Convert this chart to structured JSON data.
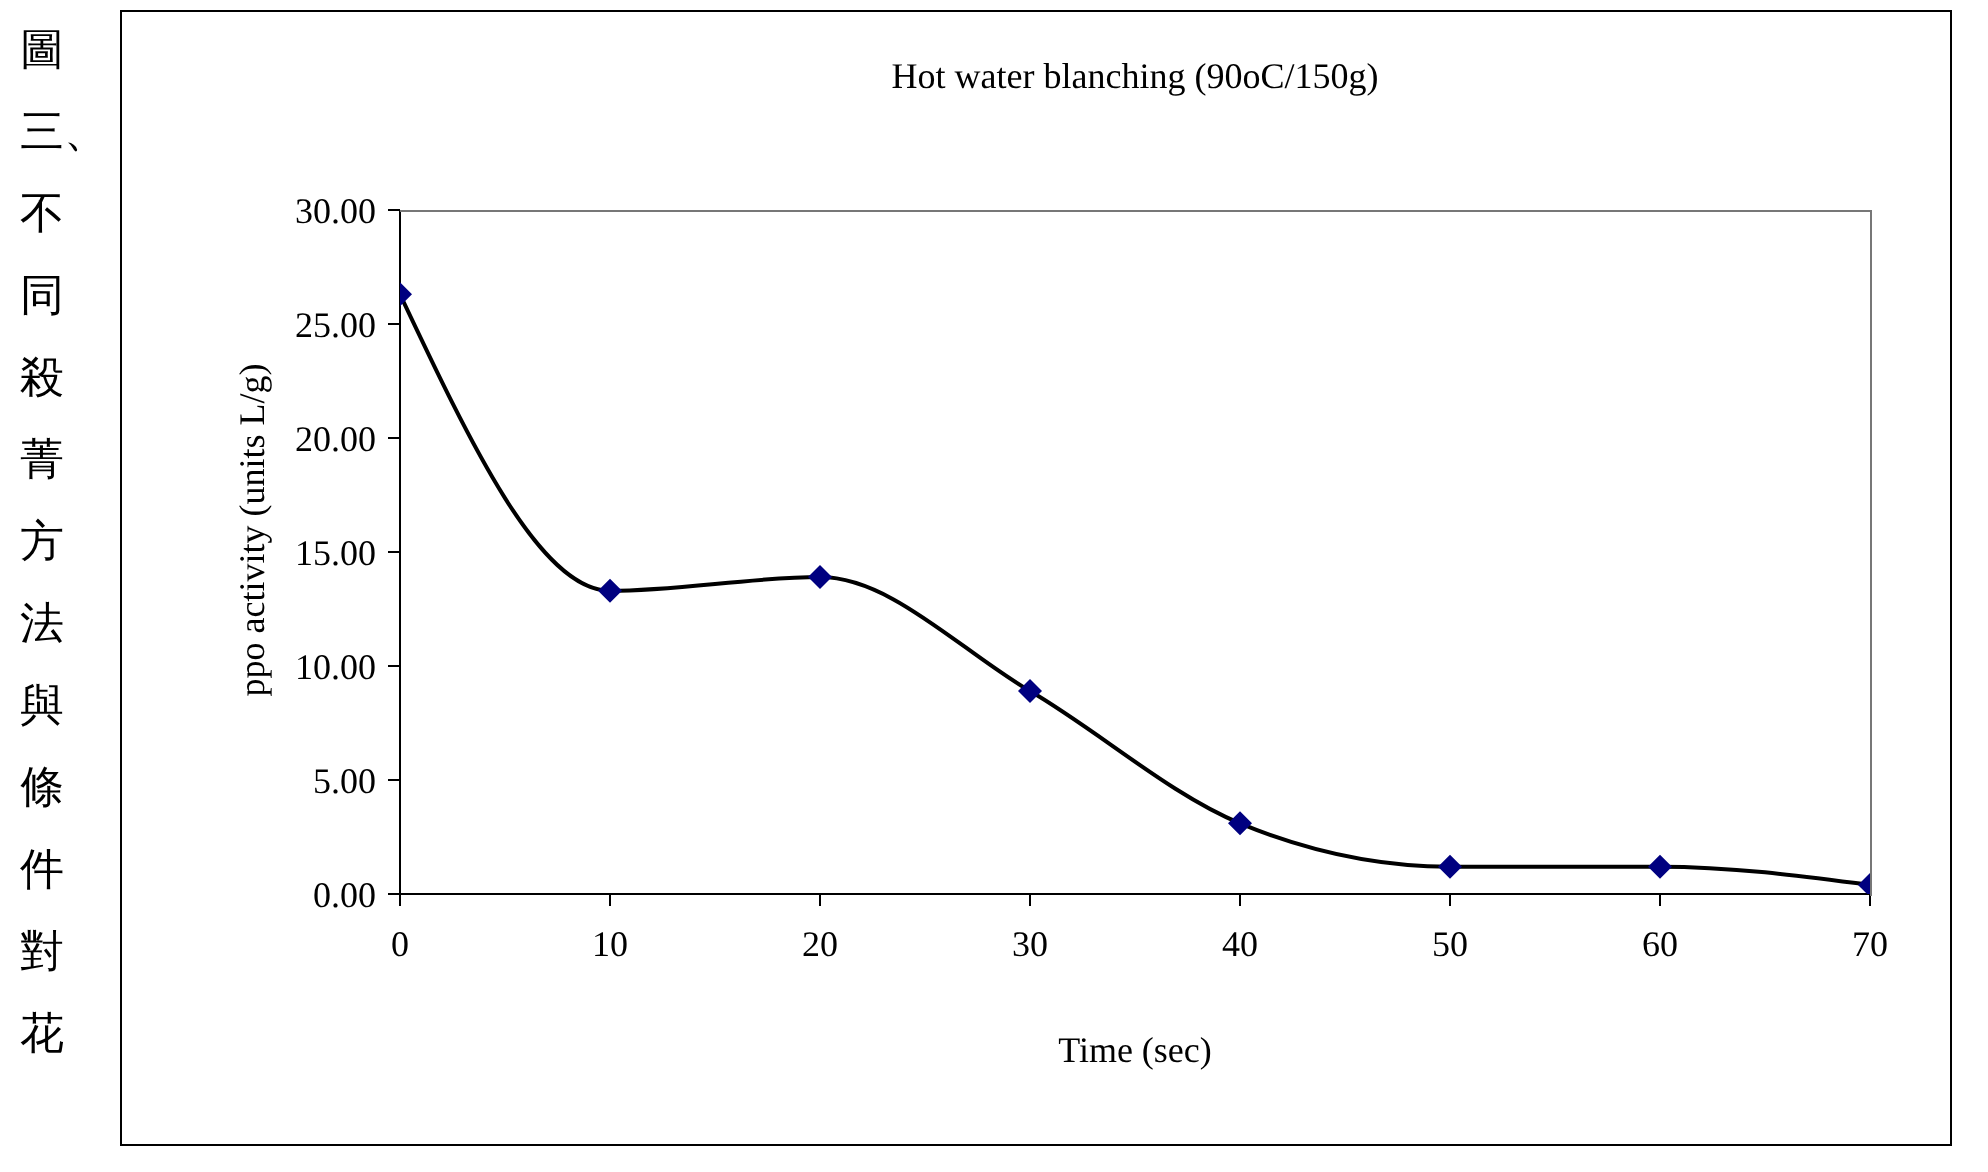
{
  "chart_data": {
    "type": "line",
    "title": "Hot water blanching (90oC/150g)",
    "xlabel": "Time (sec)",
    "ylabel": "ppo activity (units L/g)",
    "annotations": [
      "圖三、不同殺菁方法與條件對花"
    ],
    "x": [
      0,
      10,
      20,
      30,
      40,
      50,
      60,
      70
    ],
    "series": [
      {
        "color": "#000080",
        "values": [
          26.3,
          13.3,
          13.9,
          8.9,
          3.1,
          1.2,
          1.2,
          0.4
        ]
      }
    ],
    "xlim": [
      0,
      70
    ],
    "xticks": [
      0,
      10,
      20,
      30,
      40,
      50,
      60,
      70
    ],
    "ylim": [
      0,
      30
    ],
    "yticks": [
      {
        "value": 0,
        "label": "0.00"
      },
      {
        "value": 5,
        "label": "5.00"
      },
      {
        "value": 10,
        "label": "10.00"
      },
      {
        "value": 15,
        "label": "15.00"
      },
      {
        "value": 20,
        "label": "20.00"
      },
      {
        "value": 25,
        "label": "25.00"
      },
      {
        "value": 30,
        "label": "30.00"
      }
    ],
    "grid": false,
    "legend": false,
    "marker": "diamond",
    "line_style": "solid"
  }
}
